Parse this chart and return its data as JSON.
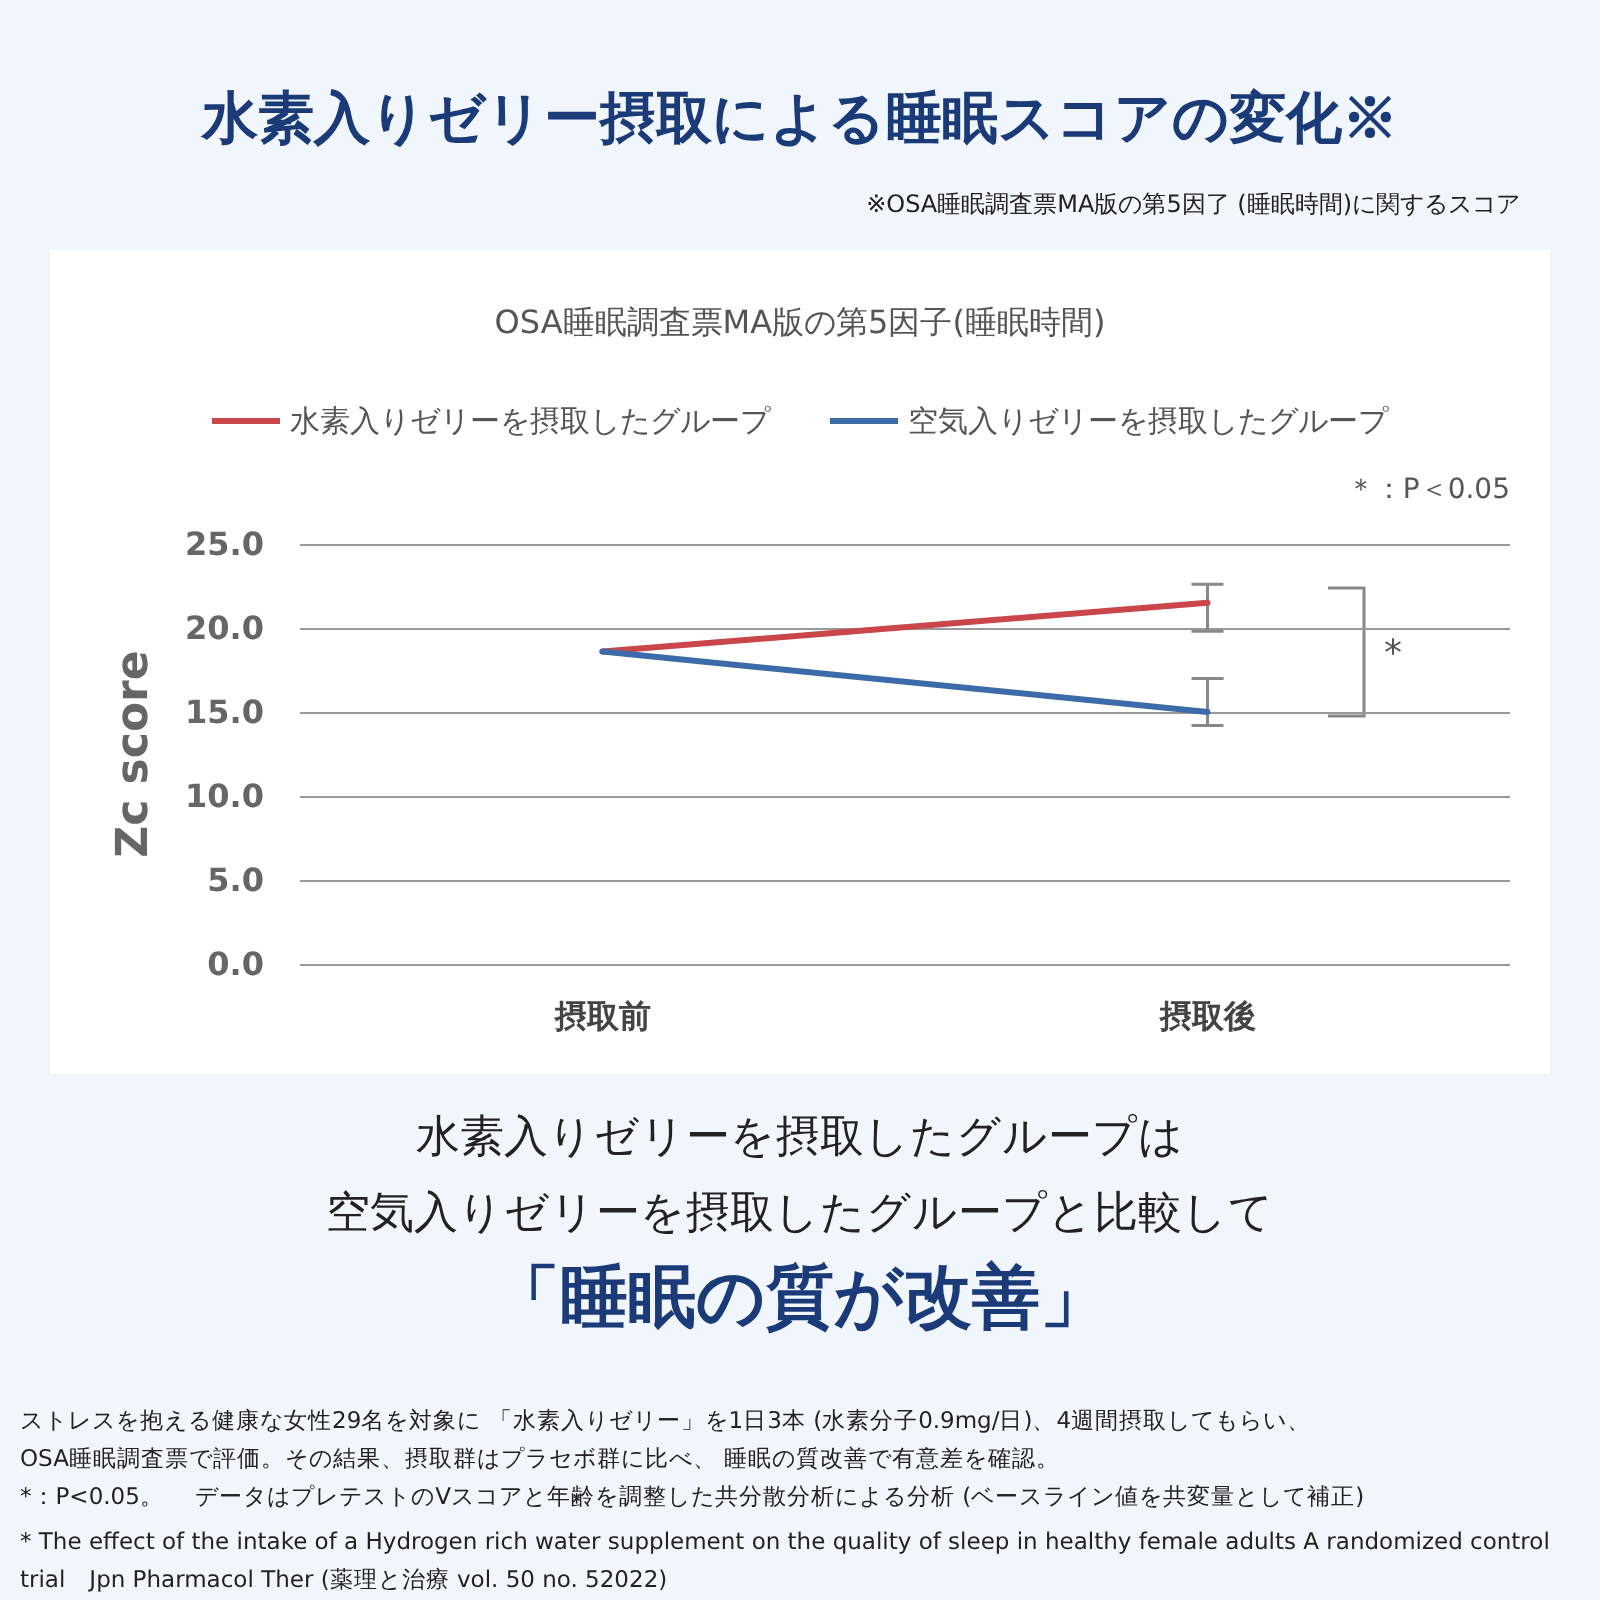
{
  "chart_data": {
    "type": "line",
    "title": "水素入りゼリー摂取による睡眠スコアの変化※",
    "subtitle": "OSA睡眠調査票MA版の第5因子(睡眠時間)",
    "ylabel": "Zc score",
    "categories": [
      "摂取前",
      "摂取後"
    ],
    "series": [
      {
        "name": "水素入りゼリーを摂取したグループ",
        "color": "#c9474b",
        "values": [
          18.6,
          21.5
        ],
        "errors": [
          null,
          [
            19.8,
            22.6
          ]
        ]
      },
      {
        "name": "空気入りゼリーを摂取したグループ",
        "color": "#3d6aa8",
        "values": [
          18.6,
          15.0
        ],
        "errors": [
          null,
          [
            14.2,
            17.0
          ]
        ]
      }
    ],
    "ylim": [
      0,
      25
    ],
    "yticks": [
      {
        "value": 0,
        "label": "0.0"
      },
      {
        "value": 5,
        "label": "5.0"
      },
      {
        "value": 10,
        "label": "10.0"
      },
      {
        "value": 15,
        "label": "15.0"
      },
      {
        "value": 20,
        "label": "20.0"
      },
      {
        "value": 25,
        "label": "25.0"
      }
    ],
    "grid": "y",
    "legend": "top",
    "marker": "none",
    "line_style": "solid",
    "annotations": [
      "※OSA睡眠調査票MA版の第5因了 (睡眠時間)に関するスコア",
      "＊：P＜0.05",
      "*",
      "水素入りゼリーを摂取したグループは",
      "空気入りゼリーを摂取したグループと比較して",
      "「睡眠の質が改善」",
      "ストレスを抱える健康な女性29名を対象に 「水素入りゼリー」を1日3本 (水素分子0.9mg/日)、4週間摂取してもらい、",
      "OSA睡眠調査票で評価。その結果、摂取群はプラセボ群に比べ、 睡眠の質改善で有意差を確認。",
      "*：P<0.05。　 データはプレテストのVスコアと年齢を調整した共分散分析による分析 (ベースライン値を共変量として補正)",
      "* The effect of the intake of a Hydrogen rich water supplement on the quality of sleep in healthy female adults A randomized control trial　Jpn Pharmacol Ther (薬理と治療 vol. 50 no. 52022)"
    ]
  }
}
